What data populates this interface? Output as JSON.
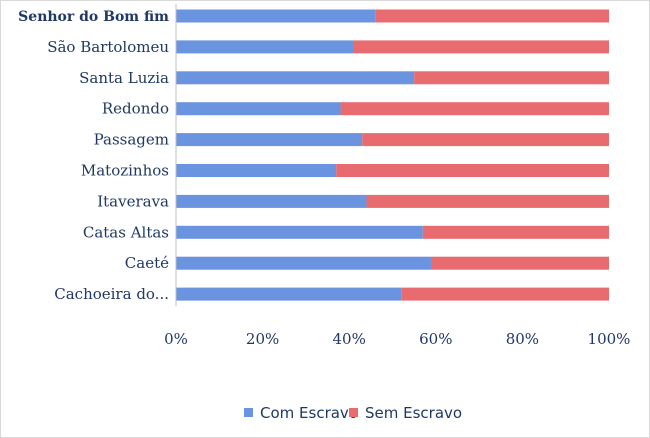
{
  "chart_data": {
    "type": "bar",
    "orientation": "horizontal",
    "stacking": "percent",
    "categories": [
      "Senhor do Bom fim",
      "São Bartolomeu",
      "Santa Luzia",
      "Redondo",
      "Passagem",
      "Matozinhos",
      "Itaverava",
      "Catas Altas",
      "Caeté",
      "Cachoeira do..."
    ],
    "series": [
      {
        "name": "Com Escravo",
        "color": "#6a93e0",
        "values": [
          46,
          41,
          55,
          38,
          43,
          37,
          44,
          57,
          59,
          52
        ]
      },
      {
        "name": "Sem Escravo",
        "color": "#e86b70",
        "values": [
          54,
          59,
          45,
          62,
          57,
          63,
          56,
          43,
          41,
          48
        ]
      }
    ],
    "xlim": [
      0,
      100
    ],
    "xticks": [
      "0%",
      "20%",
      "40%",
      "60%",
      "80%",
      "100%"
    ],
    "grid": false,
    "legend": "bottom"
  }
}
